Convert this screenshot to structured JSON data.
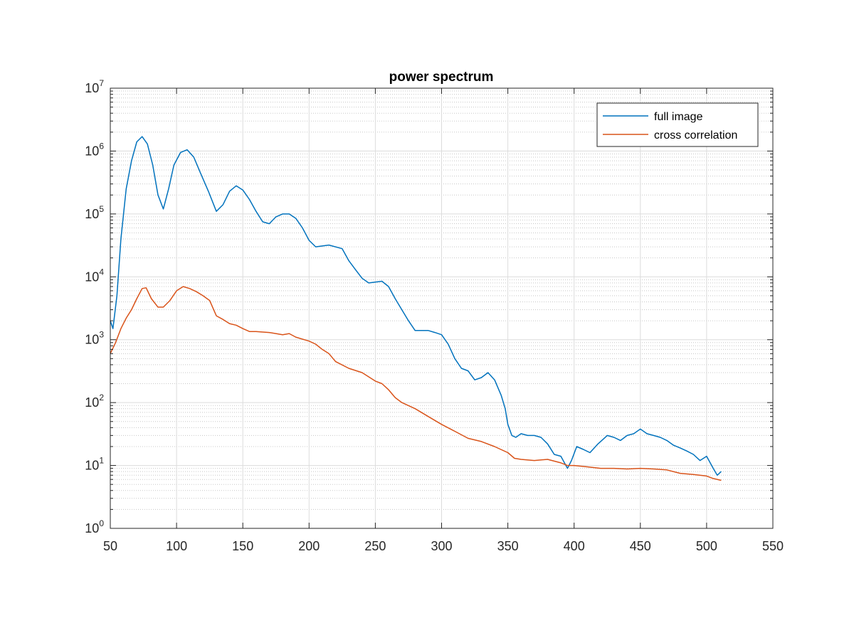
{
  "chart_data": {
    "type": "line",
    "title": "power spectrum",
    "xlabel": "",
    "ylabel": "",
    "xlim": [
      50,
      550
    ],
    "ylim": [
      1,
      10000000
    ],
    "yscale": "log",
    "grid": true,
    "minor_grid": true,
    "legend_position": "top-right",
    "x_ticks": [
      50,
      100,
      150,
      200,
      250,
      300,
      350,
      400,
      450,
      500,
      550
    ],
    "y_ticks": [
      {
        "base": "10",
        "exp": "0",
        "value": 1
      },
      {
        "base": "10",
        "exp": "1",
        "value": 10
      },
      {
        "base": "10",
        "exp": "2",
        "value": 100
      },
      {
        "base": "10",
        "exp": "3",
        "value": 1000
      },
      {
        "base": "10",
        "exp": "4",
        "value": 10000
      },
      {
        "base": "10",
        "exp": "5",
        "value": 100000
      },
      {
        "base": "10",
        "exp": "6",
        "value": 1000000
      },
      {
        "base": "10",
        "exp": "7",
        "value": 10000000
      }
    ],
    "series": [
      {
        "name": "full image",
        "color": "#0072BD",
        "points": [
          [
            50,
            2000
          ],
          [
            52,
            1500
          ],
          [
            55,
            5000
          ],
          [
            58,
            40000
          ],
          [
            62,
            250000
          ],
          [
            66,
            700000
          ],
          [
            70,
            1400000
          ],
          [
            74,
            1700000
          ],
          [
            78,
            1300000
          ],
          [
            82,
            600000
          ],
          [
            86,
            200000
          ],
          [
            90,
            120000
          ],
          [
            94,
            250000
          ],
          [
            98,
            600000
          ],
          [
            103,
            950000
          ],
          [
            108,
            1050000
          ],
          [
            113,
            800000
          ],
          [
            118,
            450000
          ],
          [
            124,
            230000
          ],
          [
            130,
            110000
          ],
          [
            135,
            140000
          ],
          [
            140,
            230000
          ],
          [
            145,
            280000
          ],
          [
            150,
            240000
          ],
          [
            155,
            170000
          ],
          [
            160,
            110000
          ],
          [
            165,
            75000
          ],
          [
            170,
            70000
          ],
          [
            175,
            90000
          ],
          [
            180,
            100000
          ],
          [
            185,
            100000
          ],
          [
            190,
            85000
          ],
          [
            195,
            60000
          ],
          [
            200,
            38000
          ],
          [
            205,
            30000
          ],
          [
            215,
            32000
          ],
          [
            225,
            28000
          ],
          [
            230,
            18000
          ],
          [
            235,
            13000
          ],
          [
            240,
            9500
          ],
          [
            245,
            8000
          ],
          [
            255,
            8500
          ],
          [
            260,
            7000
          ],
          [
            265,
            4500
          ],
          [
            270,
            3000
          ],
          [
            275,
            2000
          ],
          [
            280,
            1400
          ],
          [
            290,
            1400
          ],
          [
            295,
            1300
          ],
          [
            300,
            1200
          ],
          [
            305,
            850
          ],
          [
            310,
            500
          ],
          [
            315,
            350
          ],
          [
            320,
            320
          ],
          [
            325,
            230
          ],
          [
            330,
            250
          ],
          [
            335,
            300
          ],
          [
            340,
            230
          ],
          [
            345,
            130
          ],
          [
            348,
            80
          ],
          [
            350,
            45
          ],
          [
            353,
            30
          ],
          [
            356,
            28
          ],
          [
            360,
            32
          ],
          [
            365,
            30
          ],
          [
            370,
            30
          ],
          [
            375,
            28
          ],
          [
            380,
            22
          ],
          [
            385,
            15
          ],
          [
            390,
            14
          ],
          [
            395,
            9
          ],
          [
            398,
            12
          ],
          [
            402,
            20
          ],
          [
            407,
            18
          ],
          [
            412,
            16
          ],
          [
            418,
            22
          ],
          [
            425,
            30
          ],
          [
            430,
            28
          ],
          [
            435,
            25
          ],
          [
            440,
            30
          ],
          [
            445,
            32
          ],
          [
            450,
            38
          ],
          [
            455,
            32
          ],
          [
            460,
            30
          ],
          [
            465,
            28
          ],
          [
            470,
            25
          ],
          [
            475,
            21
          ],
          [
            480,
            19
          ],
          [
            485,
            17
          ],
          [
            490,
            15
          ],
          [
            495,
            12
          ],
          [
            500,
            14
          ],
          [
            505,
            9
          ],
          [
            508,
            7
          ],
          [
            511,
            8
          ]
        ]
      },
      {
        "name": "cross correlation",
        "color": "#D95319",
        "points": [
          [
            50,
            600
          ],
          [
            54,
            900
          ],
          [
            58,
            1500
          ],
          [
            62,
            2200
          ],
          [
            66,
            3000
          ],
          [
            70,
            4500
          ],
          [
            74,
            6500
          ],
          [
            77,
            6700
          ],
          [
            81,
            4500
          ],
          [
            86,
            3300
          ],
          [
            90,
            3300
          ],
          [
            95,
            4200
          ],
          [
            100,
            6000
          ],
          [
            105,
            7000
          ],
          [
            110,
            6500
          ],
          [
            115,
            5800
          ],
          [
            120,
            5000
          ],
          [
            125,
            4200
          ],
          [
            130,
            2400
          ],
          [
            135,
            2100
          ],
          [
            140,
            1800
          ],
          [
            145,
            1700
          ],
          [
            150,
            1500
          ],
          [
            155,
            1350
          ],
          [
            160,
            1350
          ],
          [
            170,
            1300
          ],
          [
            175,
            1250
          ],
          [
            180,
            1200
          ],
          [
            185,
            1250
          ],
          [
            190,
            1100
          ],
          [
            200,
            950
          ],
          [
            205,
            850
          ],
          [
            210,
            700
          ],
          [
            215,
            600
          ],
          [
            220,
            450
          ],
          [
            230,
            350
          ],
          [
            240,
            300
          ],
          [
            250,
            220
          ],
          [
            255,
            200
          ],
          [
            260,
            160
          ],
          [
            265,
            120
          ],
          [
            270,
            100
          ],
          [
            280,
            80
          ],
          [
            290,
            60
          ],
          [
            300,
            45
          ],
          [
            310,
            35
          ],
          [
            320,
            27
          ],
          [
            330,
            24
          ],
          [
            340,
            20
          ],
          [
            350,
            16
          ],
          [
            355,
            13
          ],
          [
            360,
            12.5
          ],
          [
            370,
            12
          ],
          [
            380,
            12.5
          ],
          [
            390,
            11
          ],
          [
            395,
            10
          ],
          [
            400,
            10
          ],
          [
            410,
            9.5
          ],
          [
            420,
            9
          ],
          [
            430,
            9
          ],
          [
            440,
            8.8
          ],
          [
            450,
            9
          ],
          [
            460,
            8.8
          ],
          [
            470,
            8.5
          ],
          [
            480,
            7.5
          ],
          [
            490,
            7.2
          ],
          [
            500,
            6.8
          ],
          [
            505,
            6.2
          ],
          [
            511,
            5.8
          ]
        ]
      }
    ]
  }
}
